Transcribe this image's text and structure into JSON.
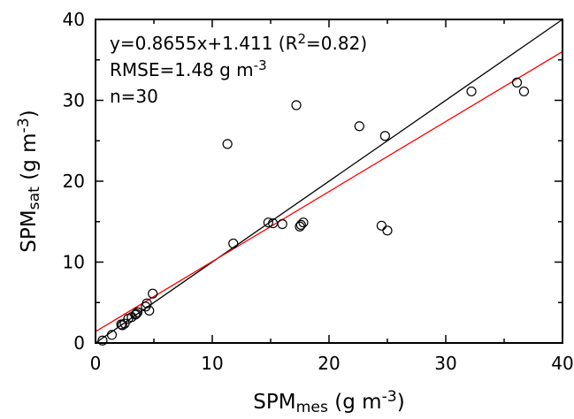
{
  "chart_data": {
    "type": "scatter",
    "x_label": [
      {
        "text": "SPM"
      },
      {
        "text": "mes",
        "shift": "sub"
      },
      {
        "text": " (g m"
      },
      {
        "text": "-3",
        "shift": "super"
      },
      {
        "text": ")"
      }
    ],
    "y_label": [
      {
        "text": "SPM"
      },
      {
        "text": "sat",
        "shift": "sub"
      },
      {
        "text": " (g m"
      },
      {
        "text": "-3",
        "shift": "super"
      },
      {
        "text": ")"
      }
    ],
    "annotations": [
      [
        {
          "text": "y=0.8655x+1.411 (R"
        },
        {
          "text": "2",
          "shift": "super"
        },
        {
          "text": "=0.82)"
        }
      ],
      [
        {
          "text": "RMSE=1.48 g m"
        },
        {
          "text": "-3",
          "shift": "super"
        }
      ],
      [
        {
          "text": "n=30"
        }
      ]
    ],
    "xlim": [
      0,
      40
    ],
    "ylim": [
      0,
      40
    ],
    "xticks": [
      0,
      10,
      20,
      30,
      40
    ],
    "yticks": [
      0,
      10,
      20,
      30,
      40
    ],
    "minor_xticks": [
      5,
      15,
      25,
      35
    ],
    "minor_yticks": [
      5,
      15,
      25,
      35
    ],
    "series": [
      {
        "color": "#000000",
        "x": [
          0.6,
          1.4,
          2.2,
          2.3,
          2.5,
          2.8,
          3.1,
          3.4,
          3.5,
          3.6,
          4.3,
          4.4,
          4.6,
          4.9,
          11.3,
          11.8,
          14.8,
          15.2,
          16.0,
          17.2,
          17.5,
          17.6,
          17.8,
          22.6,
          24.5,
          24.8,
          25.0,
          32.2,
          36.1,
          36.7
        ],
        "values": [
          0.3,
          1.0,
          2.3,
          2.2,
          2.4,
          3.0,
          3.2,
          3.5,
          3.6,
          3.8,
          4.5,
          4.9,
          4.0,
          6.1,
          24.6,
          12.3,
          14.9,
          14.8,
          14.7,
          29.4,
          14.4,
          14.6,
          14.9,
          26.8,
          14.5,
          25.6,
          13.9,
          31.1,
          32.2,
          31.1
        ]
      }
    ],
    "reference_lines": [
      {
        "x": [
          0,
          40
        ],
        "y": [
          0,
          40
        ],
        "color": "#000000"
      },
      {
        "x": [
          0,
          40
        ],
        "y": [
          1.411,
          36.031
        ],
        "color": "#ff0000"
      }
    ]
  }
}
